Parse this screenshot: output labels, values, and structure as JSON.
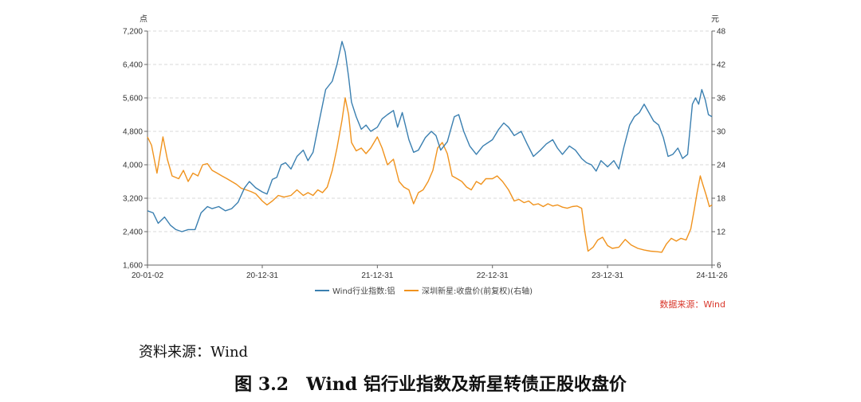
{
  "chart_data": {
    "type": "line",
    "left_unit": "点",
    "right_unit": "元",
    "left_axis": {
      "min": 1600,
      "max": 7200,
      "ticks": [
        "1,600",
        "2,400",
        "3,200",
        "4,000",
        "4,800",
        "5,600",
        "6,400",
        "7,200"
      ]
    },
    "right_axis": {
      "min": 6,
      "max": 48,
      "ticks": [
        "6",
        "12",
        "18",
        "24",
        "30",
        "36",
        "42",
        "48"
      ]
    },
    "x_ticks": [
      "20-01-02",
      "20-12-31",
      "21-12-31",
      "22-12-31",
      "23-12-31",
      "24-11-26"
    ],
    "x_tick_dates": [
      "2020-01-02",
      "2020-12-31",
      "2021-12-31",
      "2022-12-31",
      "2023-12-31",
      "2024-11-26"
    ],
    "grid": true,
    "legend_position": "bottom",
    "series": [
      {
        "name": "Wind行业指数:铝",
        "axis": "left",
        "color": "#3a7fb0",
        "points": [
          [
            "2020-01-02",
            2900
          ],
          [
            "2020-01-20",
            2850
          ],
          [
            "2020-02-05",
            2600
          ],
          [
            "2020-02-25",
            2750
          ],
          [
            "2020-03-15",
            2550
          ],
          [
            "2020-04-01",
            2450
          ],
          [
            "2020-04-20",
            2400
          ],
          [
            "2020-05-10",
            2450
          ],
          [
            "2020-06-01",
            2450
          ],
          [
            "2020-06-20",
            2850
          ],
          [
            "2020-07-10",
            3000
          ],
          [
            "2020-07-25",
            2950
          ],
          [
            "2020-08-15",
            3000
          ],
          [
            "2020-09-05",
            2900
          ],
          [
            "2020-09-25",
            2950
          ],
          [
            "2020-10-15",
            3100
          ],
          [
            "2020-11-05",
            3450
          ],
          [
            "2020-11-20",
            3600
          ],
          [
            "2020-12-10",
            3450
          ],
          [
            "2020-12-31",
            3350
          ],
          [
            "2021-01-15",
            3300
          ],
          [
            "2021-02-01",
            3650
          ],
          [
            "2021-02-15",
            3700
          ],
          [
            "2021-03-01",
            4000
          ],
          [
            "2021-03-15",
            4050
          ],
          [
            "2021-04-01",
            3900
          ],
          [
            "2021-04-20",
            4200
          ],
          [
            "2021-05-10",
            4350
          ],
          [
            "2021-05-25",
            4100
          ],
          [
            "2021-06-10",
            4300
          ],
          [
            "2021-07-01",
            5100
          ],
          [
            "2021-07-20",
            5800
          ],
          [
            "2021-08-10",
            6000
          ],
          [
            "2021-08-25",
            6400
          ],
          [
            "2021-09-10",
            6950
          ],
          [
            "2021-09-20",
            6700
          ],
          [
            "2021-10-01",
            6100
          ],
          [
            "2021-10-10",
            5500
          ],
          [
            "2021-10-25",
            5150
          ],
          [
            "2021-11-10",
            4850
          ],
          [
            "2021-11-25",
            4950
          ],
          [
            "2021-12-10",
            4800
          ],
          [
            "2021-12-31",
            4900
          ],
          [
            "2022-01-15",
            5100
          ],
          [
            "2022-02-01",
            5200
          ],
          [
            "2022-02-20",
            5300
          ],
          [
            "2022-03-05",
            4900
          ],
          [
            "2022-03-20",
            5250
          ],
          [
            "2022-04-10",
            4600
          ],
          [
            "2022-04-25",
            4300
          ],
          [
            "2022-05-10",
            4350
          ],
          [
            "2022-06-01",
            4650
          ],
          [
            "2022-06-20",
            4800
          ],
          [
            "2022-07-05",
            4700
          ],
          [
            "2022-07-20",
            4350
          ],
          [
            "2022-08-10",
            4550
          ],
          [
            "2022-09-01",
            5150
          ],
          [
            "2022-09-15",
            5200
          ],
          [
            "2022-10-01",
            4800
          ],
          [
            "2022-10-20",
            4450
          ],
          [
            "2022-11-10",
            4250
          ],
          [
            "2022-12-01",
            4450
          ],
          [
            "2022-12-31",
            4600
          ],
          [
            "2023-01-20",
            4850
          ],
          [
            "2023-02-05",
            5000
          ],
          [
            "2023-02-20",
            4900
          ],
          [
            "2023-03-10",
            4700
          ],
          [
            "2023-04-01",
            4800
          ],
          [
            "2023-04-20",
            4500
          ],
          [
            "2023-05-10",
            4200
          ],
          [
            "2023-06-01",
            4350
          ],
          [
            "2023-06-20",
            4500
          ],
          [
            "2023-07-10",
            4600
          ],
          [
            "2023-07-25",
            4400
          ],
          [
            "2023-08-10",
            4250
          ],
          [
            "2023-09-01",
            4450
          ],
          [
            "2023-09-20",
            4350
          ],
          [
            "2023-10-10",
            4150
          ],
          [
            "2023-10-25",
            4050
          ],
          [
            "2023-11-10",
            4000
          ],
          [
            "2023-11-25",
            3850
          ],
          [
            "2023-12-10",
            4100
          ],
          [
            "2023-12-31",
            3950
          ],
          [
            "2024-01-20",
            4100
          ],
          [
            "2024-02-05",
            3900
          ],
          [
            "2024-02-20",
            4400
          ],
          [
            "2024-03-10",
            4950
          ],
          [
            "2024-03-25",
            5150
          ],
          [
            "2024-04-10",
            5250
          ],
          [
            "2024-04-25",
            5450
          ],
          [
            "2024-05-10",
            5250
          ],
          [
            "2024-05-25",
            5050
          ],
          [
            "2024-06-10",
            4950
          ],
          [
            "2024-06-25",
            4650
          ],
          [
            "2024-07-10",
            4200
          ],
          [
            "2024-07-25",
            4250
          ],
          [
            "2024-08-10",
            4400
          ],
          [
            "2024-08-25",
            4150
          ],
          [
            "2024-09-10",
            4250
          ],
          [
            "2024-09-25",
            5450
          ],
          [
            "2024-10-05",
            5600
          ],
          [
            "2024-10-15",
            5450
          ],
          [
            "2024-10-25",
            5800
          ],
          [
            "2024-11-05",
            5550
          ],
          [
            "2024-11-15",
            5200
          ],
          [
            "2024-11-26",
            5150
          ]
        ]
      },
      {
        "name": "深圳新星:收盘价(前复权)(右轴)",
        "axis": "right",
        "color": "#f0931e",
        "points": [
          [
            "2020-01-02",
            29
          ],
          [
            "2020-01-15",
            27.5
          ],
          [
            "2020-02-01",
            22.5
          ],
          [
            "2020-02-10",
            25.5
          ],
          [
            "2020-02-20",
            29
          ],
          [
            "2020-03-05",
            25
          ],
          [
            "2020-03-20",
            22
          ],
          [
            "2020-04-10",
            21.5
          ],
          [
            "2020-04-25",
            23
          ],
          [
            "2020-05-10",
            21
          ],
          [
            "2020-05-25",
            22.5
          ],
          [
            "2020-06-10",
            22
          ],
          [
            "2020-06-25",
            24
          ],
          [
            "2020-07-10",
            24.2
          ],
          [
            "2020-07-25",
            23
          ],
          [
            "2020-08-10",
            22.5
          ],
          [
            "2020-08-25",
            22
          ],
          [
            "2020-09-10",
            21.5
          ],
          [
            "2020-09-25",
            21
          ],
          [
            "2020-10-10",
            20.5
          ],
          [
            "2020-10-25",
            19.8
          ],
          [
            "2020-11-10",
            19.5
          ],
          [
            "2020-11-25",
            19.2
          ],
          [
            "2020-12-10",
            18.8
          ],
          [
            "2020-12-31",
            17.5
          ],
          [
            "2021-01-15",
            16.8
          ],
          [
            "2021-02-01",
            17.5
          ],
          [
            "2021-02-20",
            18.5
          ],
          [
            "2021-03-10",
            18.2
          ],
          [
            "2021-04-01",
            18.5
          ],
          [
            "2021-04-20",
            19.5
          ],
          [
            "2021-05-10",
            18.5
          ],
          [
            "2021-05-25",
            19
          ],
          [
            "2021-06-10",
            18.5
          ],
          [
            "2021-06-25",
            19.5
          ],
          [
            "2021-07-10",
            19
          ],
          [
            "2021-07-25",
            20
          ],
          [
            "2021-08-10",
            23
          ],
          [
            "2021-08-25",
            27
          ],
          [
            "2021-09-10",
            32
          ],
          [
            "2021-09-20",
            36
          ],
          [
            "2021-10-01",
            33
          ],
          [
            "2021-10-10",
            28
          ],
          [
            "2021-10-25",
            26.5
          ],
          [
            "2021-11-10",
            27
          ],
          [
            "2021-11-25",
            26
          ],
          [
            "2021-12-10",
            27
          ],
          [
            "2021-12-31",
            29
          ],
          [
            "2022-01-15",
            27
          ],
          [
            "2022-02-01",
            24
          ],
          [
            "2022-02-20",
            25
          ],
          [
            "2022-03-10",
            21
          ],
          [
            "2022-03-25",
            20
          ],
          [
            "2022-04-10",
            19.5
          ],
          [
            "2022-04-25",
            17
          ],
          [
            "2022-05-10",
            19
          ],
          [
            "2022-05-25",
            19.5
          ],
          [
            "2022-06-10",
            21
          ],
          [
            "2022-06-25",
            23
          ],
          [
            "2022-07-10",
            27
          ],
          [
            "2022-07-25",
            28
          ],
          [
            "2022-08-10",
            26
          ],
          [
            "2022-08-25",
            22
          ],
          [
            "2022-09-10",
            21.5
          ],
          [
            "2022-09-25",
            21
          ],
          [
            "2022-10-10",
            20
          ],
          [
            "2022-10-25",
            19.5
          ],
          [
            "2022-11-10",
            21
          ],
          [
            "2022-11-25",
            20.5
          ],
          [
            "2022-12-10",
            21.5
          ],
          [
            "2022-12-31",
            21.5
          ],
          [
            "2023-01-15",
            22
          ],
          [
            "2023-02-01",
            21
          ],
          [
            "2023-02-20",
            19.5
          ],
          [
            "2023-03-10",
            17.5
          ],
          [
            "2023-03-25",
            17.8
          ],
          [
            "2023-04-10",
            17.2
          ],
          [
            "2023-04-25",
            17.5
          ],
          [
            "2023-05-10",
            16.8
          ],
          [
            "2023-05-25",
            17
          ],
          [
            "2023-06-10",
            16.5
          ],
          [
            "2023-06-25",
            17
          ],
          [
            "2023-07-10",
            16.6
          ],
          [
            "2023-07-25",
            16.8
          ],
          [
            "2023-08-10",
            16.4
          ],
          [
            "2023-08-25",
            16.2
          ],
          [
            "2023-09-10",
            16.5
          ],
          [
            "2023-09-25",
            16.6
          ],
          [
            "2023-10-10",
            16.2
          ],
          [
            "2023-10-20",
            12
          ],
          [
            "2023-10-30",
            8.5
          ],
          [
            "2023-11-15",
            9.2
          ],
          [
            "2023-11-30",
            10.5
          ],
          [
            "2023-12-15",
            11
          ],
          [
            "2023-12-31",
            9.5
          ],
          [
            "2024-01-15",
            9
          ],
          [
            "2024-02-05",
            9.2
          ],
          [
            "2024-02-25",
            10.6
          ],
          [
            "2024-03-15",
            9.6
          ],
          [
            "2024-04-05",
            9
          ],
          [
            "2024-04-25",
            8.7
          ],
          [
            "2024-05-15",
            8.5
          ],
          [
            "2024-06-05",
            8.4
          ],
          [
            "2024-06-20",
            8.3
          ],
          [
            "2024-07-05",
            9.8
          ],
          [
            "2024-07-20",
            10.8
          ],
          [
            "2024-08-05",
            10.3
          ],
          [
            "2024-08-20",
            10.8
          ],
          [
            "2024-09-05",
            10.5
          ],
          [
            "2024-09-20",
            12.5
          ],
          [
            "2024-10-01",
            16
          ],
          [
            "2024-10-10",
            19
          ],
          [
            "2024-10-20",
            22
          ],
          [
            "2024-10-28",
            20.5
          ],
          [
            "2024-11-08",
            18.5
          ],
          [
            "2024-11-18",
            16.5
          ],
          [
            "2024-11-26",
            16.8
          ]
        ]
      }
    ],
    "source_note": "数据来源：Wind"
  },
  "caption": {
    "source": "资料来源：Wind",
    "title": "图 3.2　Wind 铝行业指数及新星转债正股收盘价"
  }
}
